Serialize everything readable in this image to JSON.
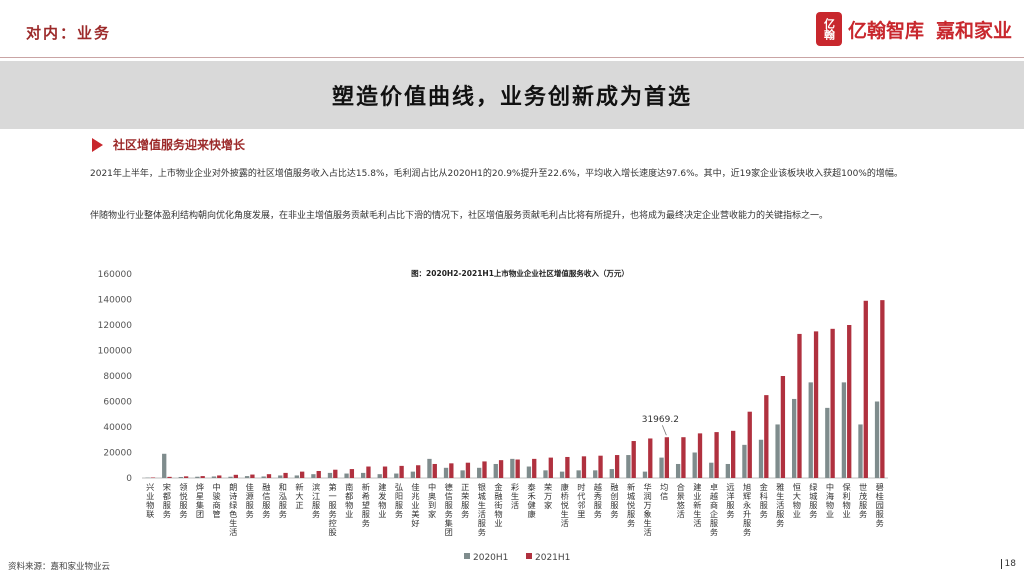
{
  "header": {
    "section_label": "对内：业务",
    "logo_mark": "亿翰",
    "logo_a": "亿翰智库",
    "logo_b": "嘉和家业"
  },
  "banner": {
    "title": "塑造价值曲线，业务创新成为首选"
  },
  "subhead": {
    "text": "社区增值服务迎来快增长",
    "icon": "arrow-right-icon"
  },
  "paragraphs": [
    "2021年上半年，上市物业企业对外披露的社区增值服务收入占比达15.8%，毛利润占比从2020H1的20.9%提升至22.6%，平均收入增长速度达97.6%。其中，近19家企业该板块收入获超100%的增幅。",
    "伴随物业行业整体盈利结构朝向优化角度发展，在非业主增值服务贡献毛利占比下滑的情况下，社区增值服务贡献毛利占比将有所提升，也将成为最终决定企业营收能力的关键指标之一。"
  ],
  "footer": {
    "source": "资料来源：嘉和家业物业云",
    "page": "18"
  },
  "chart_data": {
    "type": "bar",
    "title": "图：2020H2-2021H1上市物业企业社区增值服务收入（万元）",
    "ylim": [
      0,
      160000
    ],
    "yticks": [
      "0",
      "20000",
      "40000",
      "60000",
      "80000",
      "100000",
      "120000",
      "140000",
      "160000"
    ],
    "colors": {
      "2020H1": "#7f8c8d",
      "2021H1": "#b0313f"
    },
    "categories": [
      "兴业物联",
      "宋都服务",
      "领悦服务",
      "烨星集团",
      "中骏商管",
      "朗诗绿色生活",
      "佳源服务",
      "融信服务",
      "和泓服务",
      "新大正",
      "滨江服务",
      "第一服务控股",
      "南都物业",
      "新希望服务",
      "建发物业",
      "弘阳服务",
      "佳兆业美好",
      "中奥到家",
      "德信服务集团",
      "正荣服务",
      "银城生活服务",
      "金融街物业",
      "彩生活",
      "泰禾健康",
      "荣万家",
      "康桥悦生活",
      "时代邻里",
      "越秀服务",
      "融创服务",
      "新城悦服务",
      "华润万象生活",
      "均信",
      "合景悠活",
      "建业新生活",
      "卓越商企服务",
      "远洋服务",
      "旭辉永升服务",
      "金科服务",
      "雅生活服务",
      "恒大物业",
      "绿城服务",
      "中海物业",
      "保利物业",
      "世茂服务",
      "碧桂园服务"
    ],
    "series": [
      {
        "name": "2020H1",
        "values": [
          300,
          19000,
          800,
          1000,
          1200,
          1000,
          1500,
          1200,
          2000,
          2000,
          3000,
          4000,
          3500,
          4000,
          3000,
          3500,
          5000,
          15000,
          8000,
          6000,
          8000,
          11000,
          15000,
          9000,
          6000,
          5000,
          6000,
          6000,
          7000,
          18000,
          5000,
          16000,
          11000,
          20000,
          12000,
          11000,
          26000,
          30000,
          42000,
          62000,
          75000,
          55000,
          75000,
          42000,
          60000
        ]
      },
      {
        "name": "2021H1",
        "values": [
          400,
          900,
          1300,
          1500,
          2000,
          2500,
          2700,
          3000,
          4000,
          5000,
          5500,
          6500,
          7000,
          9000,
          9000,
          9500,
          10000,
          11000,
          11500,
          12000,
          13000,
          14000,
          14500,
          15000,
          16000,
          16500,
          17000,
          17500,
          18000,
          29000,
          31000,
          31969.2,
          32000,
          35000,
          36000,
          37000,
          52000,
          65000,
          80000,
          113000,
          115000,
          117000,
          120000,
          139000,
          139500
        ]
      }
    ],
    "annotations": [
      {
        "category": "均信",
        "series": "2021H1",
        "text": "31969.2"
      }
    ],
    "legend": {
      "position": "bottom",
      "entries": [
        "2020H1",
        "2021H1"
      ]
    }
  }
}
